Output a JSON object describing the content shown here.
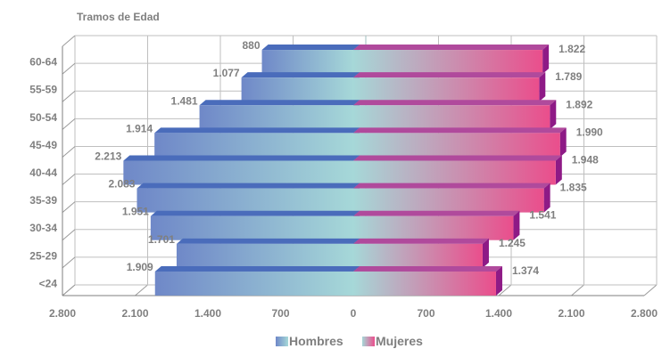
{
  "chart_data": {
    "type": "bar",
    "orientation": "horizontal-pyramid",
    "title": "Tramos de Edad",
    "categories": [
      "60-64",
      "55-59",
      "50-54",
      "45-49",
      "40-44",
      "35-39",
      "30-34",
      "25-29",
      "<24"
    ],
    "series": [
      {
        "name": "Hombres",
        "values": [
          880,
          1077,
          1481,
          1914,
          2213,
          2083,
          1951,
          1701,
          1909
        ],
        "labels": [
          "880",
          "1.077",
          "1.481",
          "1.914",
          "2.213",
          "2.083",
          "1.951",
          "1.701",
          "1.909"
        ],
        "color": "#6f88c8"
      },
      {
        "name": "Mujeres",
        "values": [
          1822,
          1789,
          1892,
          1990,
          1948,
          1835,
          1541,
          1245,
          1374
        ],
        "labels": [
          "1.822",
          "1.789",
          "1.892",
          "1.990",
          "1.948",
          "1.835",
          "1.541",
          "1.245",
          "1.374"
        ],
        "color": "#e8498a"
      }
    ],
    "xlim": [
      -2800,
      2800
    ],
    "xticks": [
      "2.800",
      "2.100",
      "1.400",
      "700",
      "0",
      "700",
      "1.400",
      "2.100",
      "2.800"
    ],
    "grid": true,
    "legend": "bottom"
  }
}
